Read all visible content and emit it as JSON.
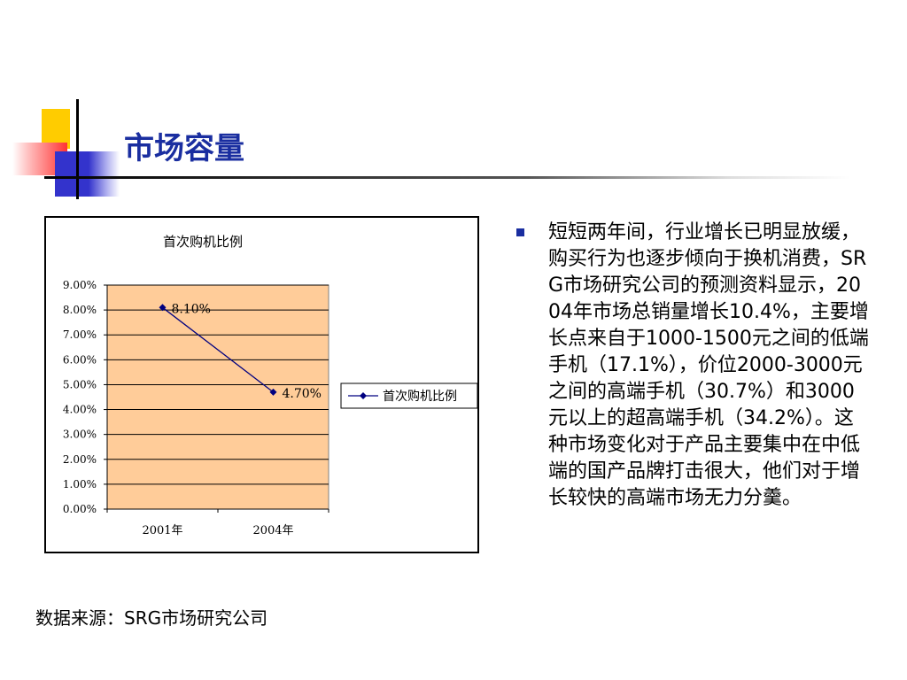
{
  "slide": {
    "title": "市场容量",
    "bullet_text": "短短两年间，行业增长已明显放缓，购买行为也逐步倾向于换机消费，SRG市场研究公司的预测资料显示，2004年市场总销量增长10.4%，主要增长点来自于1000-1500元之间的低端手机（17.1%），价位2000-3000元之间的高端手机（30.7%）和3000元以上的超高端手机（34.2%）。这种市场变化对于产品主要集中在中低端的国产品牌打击很大，他们对于增长较快的高端市场无力分羹。",
    "source_note": "数据来源：SRG市场研究公司"
  },
  "colors": {
    "title": "#1a2ea0",
    "bullet": "#1a2ea0",
    "plot_area": "#ffcc99",
    "series_line": "#000080"
  },
  "chart_data": {
    "type": "line",
    "title": "首次购机比例",
    "categories": [
      "2001年",
      "2004年"
    ],
    "series": [
      {
        "name": "首次购机比例",
        "values": [
          0.081,
          0.047
        ],
        "data_labels": [
          "8.10%",
          "4.70%"
        ]
      }
    ],
    "ylim": [
      0,
      0.09
    ],
    "y_ticks": [
      "0.00%",
      "1.00%",
      "2.00%",
      "3.00%",
      "4.00%",
      "5.00%",
      "6.00%",
      "7.00%",
      "8.00%",
      "9.00%"
    ],
    "grid": true,
    "legend": "right"
  }
}
